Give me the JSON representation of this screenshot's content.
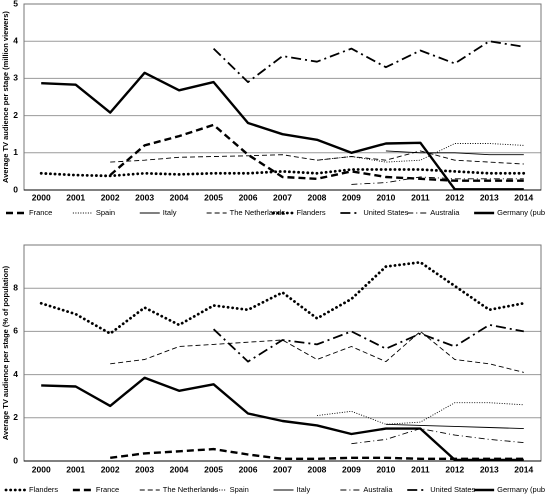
{
  "chart_data": [
    {
      "type": "line",
      "ylabel": "Average TV audience per stage (million viewers)",
      "categories": [
        "2000",
        "2001",
        "2002",
        "2003",
        "2004",
        "2005",
        "2006",
        "2007",
        "2008",
        "2009",
        "2010",
        "2011",
        "2012",
        "2013",
        "2014"
      ],
      "ylim": [
        0,
        5
      ],
      "yticks": [
        0,
        1,
        2,
        3,
        4,
        5
      ],
      "grid": true,
      "series": [
        {
          "name": "France",
          "color": "#000000",
          "line_style": "thick-dash",
          "values": [
            null,
            null,
            0.4,
            1.2,
            1.45,
            1.75,
            0.95,
            0.35,
            0.3,
            0.5,
            0.35,
            0.3,
            0.25,
            0.25,
            0.25
          ]
        },
        {
          "name": "Spain",
          "color": "#000000",
          "line_style": "dot",
          "values": [
            null,
            null,
            null,
            null,
            null,
            null,
            null,
            null,
            0.8,
            0.9,
            0.75,
            0.8,
            1.25,
            1.25,
            1.2
          ]
        },
        {
          "name": "Italy",
          "color": "#000000",
          "line_style": "solid",
          "values": [
            null,
            null,
            null,
            null,
            null,
            null,
            null,
            null,
            null,
            null,
            1.05,
            1.0,
            1.0,
            0.95,
            0.95
          ]
        },
        {
          "name": "The Netherlands",
          "color": "#000000",
          "line_style": "dash",
          "values": [
            null,
            null,
            0.75,
            0.8,
            0.88,
            0.9,
            0.92,
            0.95,
            0.8,
            0.9,
            0.8,
            1.05,
            0.8,
            0.75,
            0.7
          ]
        },
        {
          "name": "Flanders",
          "color": "#000000",
          "line_style": "thick-dot",
          "values": [
            0.45,
            0.4,
            0.38,
            0.45,
            0.42,
            0.45,
            0.45,
            0.5,
            0.45,
            0.55,
            0.55,
            0.55,
            0.5,
            0.45,
            0.45
          ]
        },
        {
          "name": "United States",
          "color": "#000000",
          "line_style": "thick-dash-dot",
          "values": [
            null,
            null,
            null,
            null,
            null,
            3.8,
            2.9,
            3.6,
            3.45,
            3.8,
            3.3,
            3.75,
            3.4,
            4.0,
            3.85
          ]
        },
        {
          "name": "Australia",
          "color": "#000000",
          "line_style": "dash-dot",
          "values": [
            null,
            null,
            null,
            null,
            null,
            null,
            null,
            null,
            null,
            0.15,
            0.2,
            0.35,
            0.3,
            0.3,
            0.3
          ]
        },
        {
          "name": "Germany (public channel)",
          "color": "#000000",
          "line_style": "thick-solid",
          "values": [
            2.87,
            2.83,
            2.08,
            3.15,
            2.68,
            2.9,
            1.8,
            1.5,
            1.35,
            1.0,
            1.25,
            1.27,
            0.02,
            0.02,
            0.02
          ]
        }
      ]
    },
    {
      "type": "line",
      "ylabel": "Average TV audience per stage (% of population)",
      "categories": [
        "2000",
        "2001",
        "2002",
        "2003",
        "2004",
        "2005",
        "2006",
        "2007",
        "2008",
        "2009",
        "2010",
        "2011",
        "2012",
        "2013",
        "2014"
      ],
      "ylim": [
        0,
        10
      ],
      "yticks": [
        0,
        2,
        4,
        6,
        8
      ],
      "grid": true,
      "series": [
        {
          "name": "Flanders",
          "color": "#000000",
          "line_style": "thick-dot",
          "values": [
            7.3,
            6.8,
            5.9,
            7.1,
            6.3,
            7.2,
            7.0,
            7.8,
            6.6,
            7.5,
            9.0,
            9.2,
            8.1,
            7.0,
            7.3
          ]
        },
        {
          "name": "France",
          "color": "#000000",
          "line_style": "thick-dash",
          "values": [
            null,
            null,
            0.15,
            0.35,
            0.45,
            0.55,
            0.3,
            0.1,
            0.1,
            0.15,
            0.15,
            0.1,
            0.1,
            0.1,
            0.1
          ]
        },
        {
          "name": "The Netherlands",
          "color": "#000000",
          "line_style": "dash",
          "values": [
            null,
            null,
            4.5,
            4.7,
            5.3,
            5.4,
            5.5,
            5.6,
            4.7,
            5.3,
            4.6,
            6.0,
            4.7,
            4.5,
            4.1
          ]
        },
        {
          "name": "Spain",
          "color": "#000000",
          "line_style": "dot",
          "values": [
            null,
            null,
            null,
            null,
            null,
            null,
            null,
            null,
            2.1,
            2.3,
            1.7,
            1.8,
            2.7,
            2.7,
            2.6
          ]
        },
        {
          "name": "Italy",
          "color": "#000000",
          "line_style": "solid",
          "values": [
            null,
            null,
            null,
            null,
            null,
            null,
            null,
            null,
            null,
            null,
            1.7,
            1.65,
            1.6,
            1.55,
            1.5
          ]
        },
        {
          "name": "Australia",
          "color": "#000000",
          "line_style": "dash-dot",
          "values": [
            null,
            null,
            null,
            null,
            null,
            null,
            null,
            null,
            null,
            0.8,
            1.0,
            1.5,
            1.2,
            1.0,
            0.85
          ]
        },
        {
          "name": "United States",
          "color": "#000000",
          "line_style": "thick-dash-dot",
          "values": [
            null,
            null,
            null,
            null,
            null,
            6.1,
            4.6,
            5.6,
            5.4,
            6.0,
            5.2,
            5.9,
            5.3,
            6.3,
            6.0
          ]
        },
        {
          "name": "Germany (public channel)",
          "color": "#000000",
          "line_style": "thick-solid",
          "values": [
            3.5,
            3.45,
            2.55,
            3.85,
            3.25,
            3.55,
            2.2,
            1.85,
            1.65,
            1.25,
            1.5,
            1.5,
            0.05,
            0.05,
            0.05
          ]
        }
      ]
    }
  ]
}
